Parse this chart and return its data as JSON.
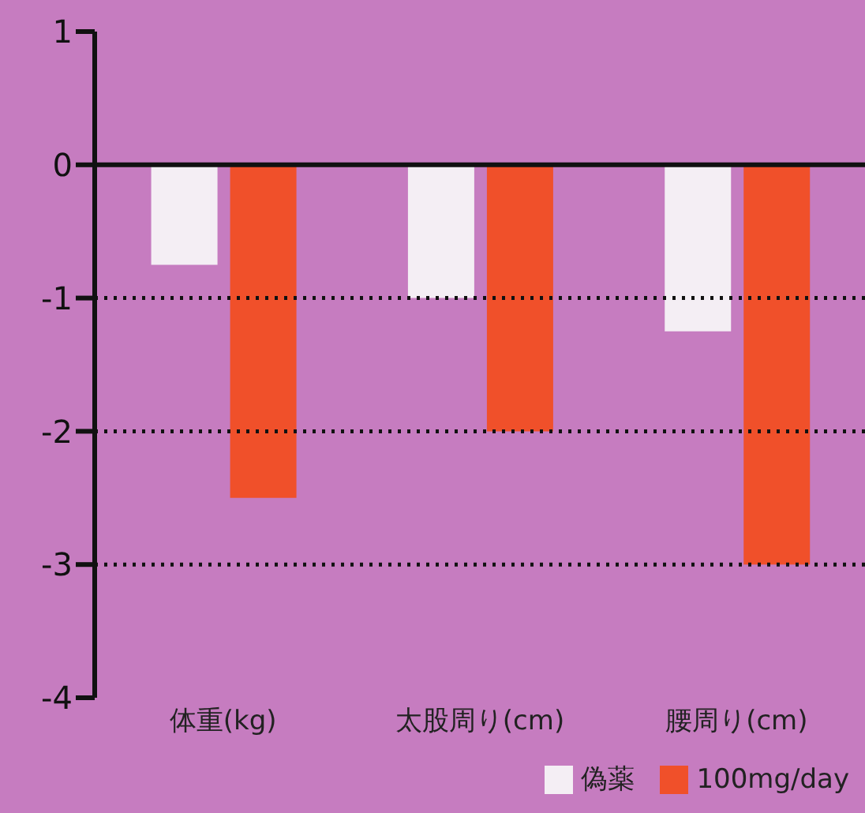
{
  "chart_data": {
    "type": "bar",
    "categories": [
      "体重(kg)",
      "太股周り(cm)",
      "腰周り(cm)"
    ],
    "series": [
      {
        "name": "偽薬",
        "color": "#f4eef4",
        "values": [
          -0.75,
          -1.0,
          -1.25
        ]
      },
      {
        "name": "100mg/day",
        "color": "#f0502a",
        "values": [
          -2.5,
          -2.0,
          -3.0
        ]
      }
    ],
    "ylim": [
      -4,
      1
    ],
    "yticks": [
      -4,
      -3,
      -2,
      -1,
      0,
      1
    ],
    "grid": false,
    "legend": "bottom right",
    "ref_lines": [
      {
        "axis": "y",
        "value": 0,
        "color": "#111111",
        "line_style": "solid"
      },
      {
        "axis": "y",
        "value": -1,
        "color": "#111111",
        "line_style": "dotted"
      },
      {
        "axis": "y",
        "value": -2,
        "color": "#111111",
        "line_style": "dotted"
      },
      {
        "axis": "y",
        "value": -3,
        "color": "#111111",
        "line_style": "dotted"
      }
    ]
  }
}
